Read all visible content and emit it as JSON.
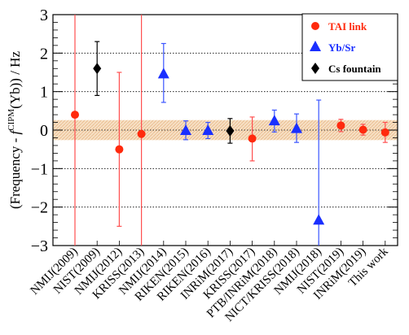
{
  "chart_data": {
    "type": "scatter",
    "ylabel_parts": [
      "(Frequency - ",
      "f",
      "CIPM",
      "(Yb)) / Hz"
    ],
    "ylim": [
      -3,
      3
    ],
    "yticks": [
      "3",
      "2",
      "1",
      "0",
      "−1",
      "−2",
      "−3"
    ],
    "ytick_values": [
      3,
      2,
      1,
      0,
      -1,
      -2,
      -3
    ],
    "band": [
      -0.26,
      0.26
    ],
    "gridlines": [
      2,
      1,
      0,
      -1,
      -2
    ],
    "categories": [
      "NMIJ(2009)",
      "NIST(2009)",
      "NMIJ(2012)",
      "KRISS(2013)",
      "NMIJ(2014)",
      "RIKEN(2015)",
      "RIKEN(2016)",
      "INRiM(2017)",
      "KRISS(2017)",
      "PTB/INRiM(2018)",
      "NICT/KRISS(2018)",
      "NMIJ(2018)",
      "NIST(2019)",
      "INRiM(2019)",
      "This work"
    ],
    "legend": {
      "placement": "top-right",
      "entries": [
        {
          "label": "TAI link",
          "marker": "circle",
          "color": "#ff2a0d"
        },
        {
          "label": "Yb/Sr",
          "marker": "triangle",
          "color": "#1a2fff"
        },
        {
          "label": "Cs fountain",
          "marker": "diamond",
          "color": "#000000"
        }
      ]
    },
    "points": [
      {
        "i": 0,
        "value": 0.4,
        "err_low": -3.0,
        "err_high": 3.0,
        "group": "TAI link"
      },
      {
        "i": 1,
        "value": 1.6,
        "err_low": 0.9,
        "err_high": 2.3,
        "group": "Cs fountain"
      },
      {
        "i": 2,
        "value": -0.5,
        "err_low": -2.5,
        "err_high": 1.5,
        "group": "TAI link"
      },
      {
        "i": 3,
        "value": -0.1,
        "err_low": -3.0,
        "err_high": 3.0,
        "group": "TAI link"
      },
      {
        "i": 4,
        "value": 1.45,
        "err_low": 0.72,
        "err_high": 2.25,
        "group": "Yb/Sr"
      },
      {
        "i": 5,
        "value": -0.02,
        "err_low": -0.25,
        "err_high": 0.24,
        "group": "Yb/Sr"
      },
      {
        "i": 6,
        "value": -0.02,
        "err_low": -0.22,
        "err_high": 0.2,
        "group": "Yb/Sr"
      },
      {
        "i": 7,
        "value": -0.02,
        "err_low": -0.34,
        "err_high": 0.3,
        "group": "Cs fountain"
      },
      {
        "i": 8,
        "value": -0.22,
        "err_low": -0.8,
        "err_high": 0.34,
        "group": "TAI link"
      },
      {
        "i": 9,
        "value": 0.23,
        "err_low": -0.05,
        "err_high": 0.52,
        "group": "Yb/Sr"
      },
      {
        "i": 10,
        "value": 0.03,
        "err_low": -0.32,
        "err_high": 0.42,
        "group": "Yb/Sr"
      },
      {
        "i": 11,
        "value": -2.35,
        "err_low": -3.0,
        "err_high": 0.78,
        "group": "Yb/Sr"
      },
      {
        "i": 12,
        "value": 0.12,
        "err_low": -0.04,
        "err_high": 0.28,
        "group": "TAI link"
      },
      {
        "i": 13,
        "value": 0.01,
        "err_low": -0.13,
        "err_high": 0.15,
        "group": "TAI link"
      },
      {
        "i": 14,
        "value": -0.06,
        "err_low": -0.32,
        "err_high": 0.2,
        "group": "TAI link"
      }
    ],
    "colors": {
      "TAI link": "#ff2a0d",
      "Yb/Sr": "#1a2fff",
      "Cs fountain": "#000000",
      "TAI link_bar": "#ff4f4f",
      "Yb/Sr_bar": "#3b55ff",
      "Cs fountain_bar": "#000000",
      "band": "#f0c896"
    }
  }
}
